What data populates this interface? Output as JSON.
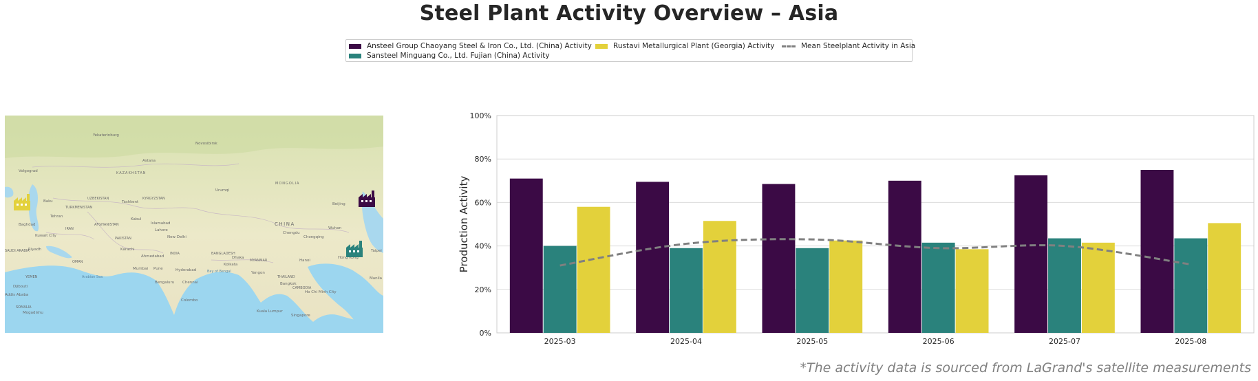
{
  "title": "Steel Plant Activity Overview – Asia",
  "footnote": "*The activity data is sourced from LaGrand's satellite measurements",
  "legend": [
    {
      "label": "Ansteel Group Chaoyang Steel & Iron Co., Ltd. (China) Activity",
      "color": "#3b0a45"
    },
    {
      "label": "Sansteel Minguang Co., Ltd. Fujian (China) Activity",
      "color": "#2a827c"
    },
    {
      "label": "Rustavi Metallurgical Plant (Georgia) Activity",
      "color": "#e3d13b"
    },
    {
      "label": "Mean Steelplant Activity in Asia",
      "color": "#808080"
    }
  ],
  "map": {
    "labels": [
      "Yekaterinburg",
      "Novosibirsk",
      "Astana",
      "Volgograd",
      "KAZAKHSTAN",
      "MONGOLIA",
      "Urumqi",
      "UZBEKISTAN",
      "KYRGYZSTAN",
      "TURKMENISTAN",
      "Tashkent",
      "Baku",
      "Tehran",
      "Kabul",
      "Islamabad",
      "AFGHANISTAN",
      "Baghdad",
      "Lahore",
      "IRAN",
      "Kuwait City",
      "PAKISTAN",
      "New Delhi",
      "Karachi",
      "Riyadh",
      "INDIA",
      "CHINA",
      "Beijing",
      "Chengdu",
      "Chongqing",
      "Wuhan",
      "Ahmedabad",
      "Mumbai",
      "Hyderabad",
      "Pune",
      "Bengaluru",
      "Chennai",
      "Colombo",
      "Bay of Bengal",
      "Arabian Sea",
      "Dhaka",
      "Kolkata",
      "BANGLADESH",
      "MYANMAR",
      "Yangon",
      "Hanoi",
      "THAILAND",
      "Bangkok",
      "CAMBODIA",
      "Ho Chi Minh City",
      "Hong Kong",
      "Kuala Lumpur",
      "Singapore",
      "YEMEN",
      "OMAN",
      "SAUDI ARABIA",
      "Djibouti",
      "Addis Ababa",
      "SOMALIA",
      "Mogadishu",
      "Manila",
      "Taipei"
    ],
    "markers": [
      {
        "name": "Rustavi Metallurgical Plant (Georgia)",
        "color": "#e3d13b",
        "icon": "factory-icon"
      },
      {
        "name": "Ansteel Group Chaoyang Steel & Iron Co., Ltd. (China)",
        "color": "#3b0a45",
        "icon": "factory-icon"
      },
      {
        "name": "Sansteel Minguang Co., Ltd. Fujian (China)",
        "color": "#2a827c",
        "icon": "factory-icon"
      }
    ]
  },
  "chart_data": {
    "type": "bar",
    "categories": [
      "2025-03",
      "2025-04",
      "2025-05",
      "2025-06",
      "2025-07",
      "2025-08"
    ],
    "series": [
      {
        "name": "Ansteel Group Chaoyang Steel & Iron Co., Ltd. (China) Activity",
        "color": "#3b0a45",
        "values": [
          71,
          69.5,
          68.5,
          70,
          72.5,
          75
        ]
      },
      {
        "name": "Sansteel Minguang Co., Ltd. Fujian (China) Activity",
        "color": "#2a827c",
        "values": [
          40,
          39,
          39,
          41.5,
          43.5,
          43.5
        ]
      },
      {
        "name": "Rustavi Metallurgical Plant (Georgia) Activity",
        "color": "#e3d13b",
        "values": [
          58,
          51.5,
          42.5,
          38.5,
          41.5,
          50.5
        ]
      }
    ],
    "line": {
      "name": "Mean Steelplant Activity in Asia",
      "color": "#808080",
      "style": "dashed",
      "values": [
        31,
        41,
        43,
        39,
        40,
        31.5
      ]
    },
    "ylabel": "Production Activity",
    "xlabel": "",
    "ylim": [
      0,
      100
    ],
    "yticks": [
      "0%",
      "20%",
      "40%",
      "60%",
      "80%",
      "100%"
    ],
    "grid": "horizontal"
  }
}
